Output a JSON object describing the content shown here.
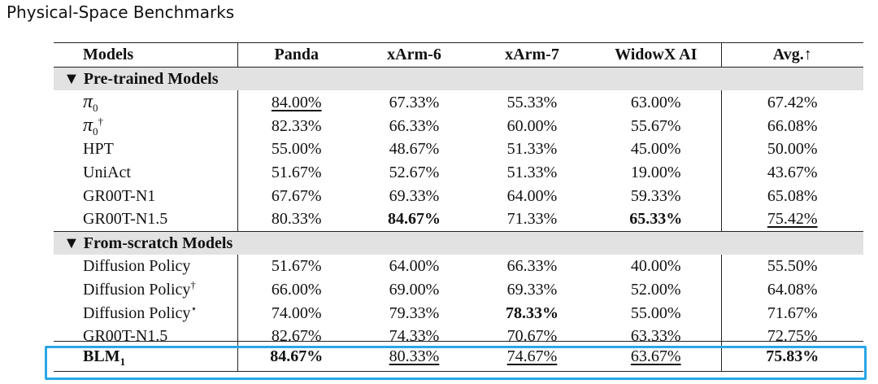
{
  "title": "Physical-Space Benchmarks",
  "columns": [
    "Models",
    "Panda",
    "xArm-6",
    "xArm-7",
    "WidowX AI",
    "Avg.↑"
  ],
  "sections": [
    {
      "label": "▼ Pre-trained Models",
      "rows": [
        {
          "model": "π",
          "sub": "0",
          "sup": "",
          "values": [
            "84.00%",
            "67.33%",
            "55.33%",
            "63.00%",
            "67.42%"
          ]
        },
        {
          "model": "π",
          "sub": "0",
          "sup": "†",
          "values": [
            "82.33%",
            "66.33%",
            "60.00%",
            "55.67%",
            "66.08%"
          ]
        },
        {
          "model": "HPT",
          "sub": "",
          "sup": "",
          "values": [
            "55.00%",
            "48.67%",
            "51.33%",
            "45.00%",
            "50.00%"
          ]
        },
        {
          "model": "UniAct",
          "sub": "",
          "sup": "",
          "values": [
            "51.67%",
            "52.67%",
            "51.33%",
            "19.00%",
            "43.67%"
          ]
        },
        {
          "model": "GR00T-N1",
          "sub": "",
          "sup": "",
          "values": [
            "67.67%",
            "69.33%",
            "64.00%",
            "59.33%",
            "65.08%"
          ]
        },
        {
          "model": "GR00T-N1.5",
          "sub": "",
          "sup": "",
          "values": [
            "80.33%",
            "84.67%",
            "71.33%",
            "65.33%",
            "75.42%"
          ]
        }
      ]
    },
    {
      "label": "▼ From-scratch Models",
      "rows": [
        {
          "model": "Diffusion Policy",
          "sub": "",
          "sup": "",
          "values": [
            "51.67%",
            "64.00%",
            "66.33%",
            "40.00%",
            "55.50%"
          ]
        },
        {
          "model": "Diffusion Policy",
          "sub": "",
          "sup": "†",
          "values": [
            "66.00%",
            "69.00%",
            "69.33%",
            "52.00%",
            "64.08%"
          ]
        },
        {
          "model": "Diffusion Policy",
          "sub": "",
          "sup": "⋆",
          "values": [
            "74.00%",
            "79.33%",
            "78.33%",
            "55.00%",
            "71.67%"
          ]
        },
        {
          "model": "GR00T-N1.5",
          "sub": "",
          "sup": "",
          "values": [
            "82.67%",
            "74.33%",
            "70.67%",
            "63.33%",
            "72.75%"
          ]
        }
      ]
    }
  ],
  "blm": {
    "model": "BLM",
    "sub": "1",
    "values": [
      "84.67%",
      "80.33%",
      "74.67%",
      "63.67%",
      "75.83%"
    ]
  },
  "highlight_color": "#2aa6e6"
}
